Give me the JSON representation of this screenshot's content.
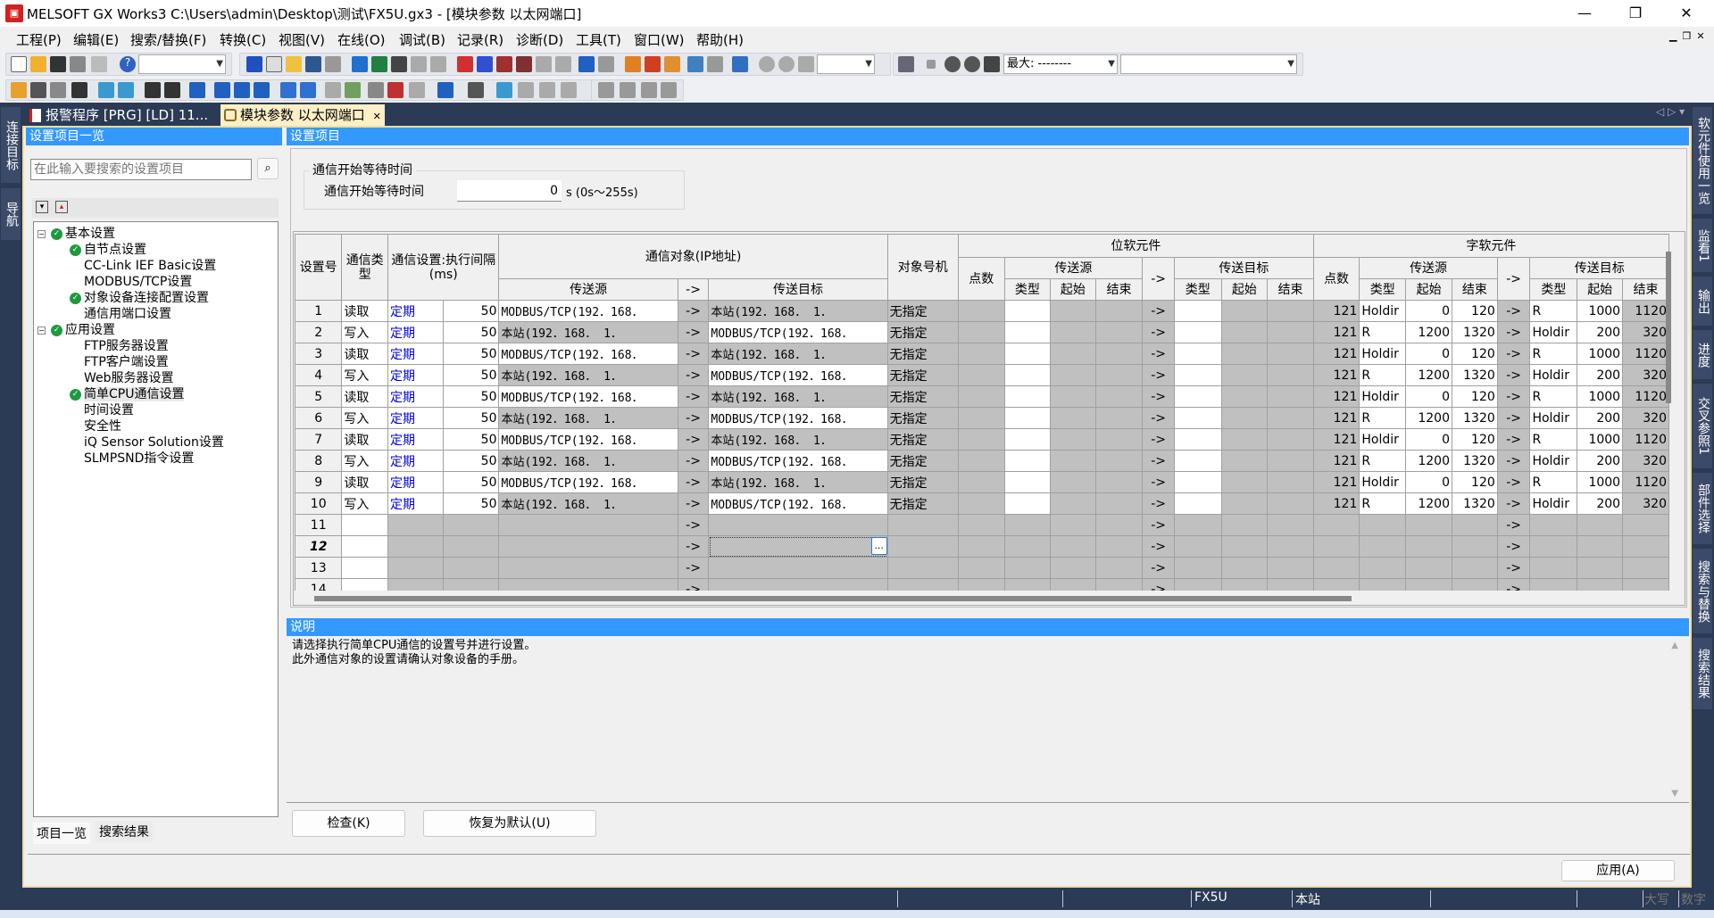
{
  "window": {
    "title": "MELSOFT GX Works3 C:\\Users\\admin\\Desktop\\测试\\FX5U.gx3 - [模块参数 以太网端口]",
    "minimize": "—",
    "restore": "❐",
    "close": "✕"
  },
  "menu": [
    "工程(P)",
    "编辑(E)",
    "搜索/替换(F)",
    "转换(C)",
    "视图(V)",
    "在线(O)",
    "调试(B)",
    "记录(R)",
    "诊断(D)",
    "工具(T)",
    "窗口(W)",
    "帮助(H)"
  ],
  "toolbar": {
    "combo1": "",
    "combo2": "",
    "max_label": "最大: --------",
    "combo4": ""
  },
  "tabs": [
    {
      "label": "报警程序 [PRG] [LD] 11..."
    },
    {
      "label": "模块参数 以太网端口",
      "close": "✕"
    }
  ],
  "tab_nav": "◁ ▷ ▾",
  "left_strip": [
    "连接目标",
    "导航"
  ],
  "right_strip": [
    "软元件使用一览",
    "监看1",
    "输出",
    "进度",
    "交叉参照1",
    "部件选择",
    "搜索与替换",
    "搜索结果"
  ],
  "left_panel": {
    "header": "设置项目一览",
    "search_placeholder": "在此输入要搜索的设置项目",
    "tree": [
      {
        "label": "基本设置",
        "level": 0,
        "checked": true,
        "expanded": true
      },
      {
        "label": "自节点设置",
        "level": 1,
        "checked": true
      },
      {
        "label": "CC-Link IEF Basic设置",
        "level": 1,
        "checked": false
      },
      {
        "label": "MODBUS/TCP设置",
        "level": 1,
        "checked": false
      },
      {
        "label": "对象设备连接配置设置",
        "level": 1,
        "checked": true
      },
      {
        "label": "通信用端口设置",
        "level": 1,
        "checked": false
      },
      {
        "label": "应用设置",
        "level": 0,
        "checked": true,
        "expanded": true
      },
      {
        "label": "FTP服务器设置",
        "level": 1,
        "checked": false
      },
      {
        "label": "FTP客户端设置",
        "level": 1,
        "checked": false
      },
      {
        "label": "Web服务器设置",
        "level": 1,
        "checked": false
      },
      {
        "label": "简单CPU通信设置",
        "level": 1,
        "checked": true,
        "selected": true
      },
      {
        "label": "时间设置",
        "level": 1,
        "checked": false
      },
      {
        "label": "安全性",
        "level": 1,
        "checked": false
      },
      {
        "label": "iQ Sensor Solution设置",
        "level": 1,
        "checked": false
      },
      {
        "label": "SLMPSND指令设置",
        "level": 1,
        "checked": false
      }
    ],
    "bottom_tabs": [
      "项目一览",
      "搜索结果"
    ]
  },
  "settings": {
    "header": "设置项目",
    "group_title": "通信开始等待时间",
    "wait_label": "通信开始等待时间",
    "wait_value": "0",
    "wait_unit": "s (0s～255s)"
  },
  "grid": {
    "headers": {
      "no": "设置号",
      "type": "通信类型",
      "interval": "通信设置:执行间隔(ms)",
      "target": "通信对象(IP地址)",
      "src": "传送源",
      "arrow": "->",
      "dst": "传送目标",
      "station": "对象号机",
      "bit": "位软元件",
      "word": "字软元件",
      "points": "点数",
      "kind": "类型",
      "start": "起始",
      "end": "结束"
    },
    "rows": [
      {
        "no": "1",
        "type": "读取",
        "mode": "定期",
        "interval": "50",
        "src": "MODBUS/TCP(192．168．",
        "dst": "本站(192．168．  1．",
        "station": "无指定",
        "w_points": "121",
        "w_src_type": "Holdir",
        "w_src_start": "0",
        "w_src_end": "120",
        "w_dst_type": "R",
        "w_dst_start": "1000",
        "w_dst_end": "1120"
      },
      {
        "no": "2",
        "type": "写入",
        "mode": "定期",
        "interval": "50",
        "src": "本站(192．168．  1．",
        "dst": "MODBUS/TCP(192．168．",
        "station": "无指定",
        "w_points": "121",
        "w_src_type": "R",
        "w_src_start": "1200",
        "w_src_end": "1320",
        "w_dst_type": "Holdir",
        "w_dst_start": "200",
        "w_dst_end": "320"
      },
      {
        "no": "3",
        "type": "读取",
        "mode": "定期",
        "interval": "50",
        "src": "MODBUS/TCP(192．168．",
        "dst": "本站(192．168．  1．",
        "station": "无指定",
        "w_points": "121",
        "w_src_type": "Holdir",
        "w_src_start": "0",
        "w_src_end": "120",
        "w_dst_type": "R",
        "w_dst_start": "1000",
        "w_dst_end": "1120"
      },
      {
        "no": "4",
        "type": "写入",
        "mode": "定期",
        "interval": "50",
        "src": "本站(192．168．  1．",
        "dst": "MODBUS/TCP(192．168．",
        "station": "无指定",
        "w_points": "121",
        "w_src_type": "R",
        "w_src_start": "1200",
        "w_src_end": "1320",
        "w_dst_type": "Holdir",
        "w_dst_start": "200",
        "w_dst_end": "320"
      },
      {
        "no": "5",
        "type": "读取",
        "mode": "定期",
        "interval": "50",
        "src": "MODBUS/TCP(192．168．",
        "dst": "本站(192．168．  1．",
        "station": "无指定",
        "w_points": "121",
        "w_src_type": "Holdir",
        "w_src_start": "0",
        "w_src_end": "120",
        "w_dst_type": "R",
        "w_dst_start": "1000",
        "w_dst_end": "1120"
      },
      {
        "no": "6",
        "type": "写入",
        "mode": "定期",
        "interval": "50",
        "src": "本站(192．168．  1．",
        "dst": "MODBUS/TCP(192．168．",
        "station": "无指定",
        "w_points": "121",
        "w_src_type": "R",
        "w_src_start": "1200",
        "w_src_end": "1320",
        "w_dst_type": "Holdir",
        "w_dst_start": "200",
        "w_dst_end": "320"
      },
      {
        "no": "7",
        "type": "读取",
        "mode": "定期",
        "interval": "50",
        "src": "MODBUS/TCP(192．168．",
        "dst": "本站(192．168．  1．",
        "station": "无指定",
        "w_points": "121",
        "w_src_type": "Holdir",
        "w_src_start": "0",
        "w_src_end": "120",
        "w_dst_type": "R",
        "w_dst_start": "1000",
        "w_dst_end": "1120"
      },
      {
        "no": "8",
        "type": "写入",
        "mode": "定期",
        "interval": "50",
        "src": "本站(192．168．  1．",
        "dst": "MODBUS/TCP(192．168．",
        "station": "无指定",
        "w_points": "121",
        "w_src_type": "R",
        "w_src_start": "1200",
        "w_src_end": "1320",
        "w_dst_type": "Holdir",
        "w_dst_start": "200",
        "w_dst_end": "320"
      },
      {
        "no": "9",
        "type": "读取",
        "mode": "定期",
        "interval": "50",
        "src": "MODBUS/TCP(192．168．",
        "dst": "本站(192．168．  1．",
        "station": "无指定",
        "w_points": "121",
        "w_src_type": "Holdir",
        "w_src_start": "0",
        "w_src_end": "120",
        "w_dst_type": "R",
        "w_dst_start": "1000",
        "w_dst_end": "1120"
      },
      {
        "no": "10",
        "type": "写入",
        "mode": "定期",
        "interval": "50",
        "src": "本站(192．168．  1．",
        "dst": "MODBUS/TCP(192．168．",
        "station": "无指定",
        "w_points": "121",
        "w_src_type": "R",
        "w_src_start": "1200",
        "w_src_end": "1320",
        "w_dst_type": "Holdir",
        "w_dst_start": "200",
        "w_dst_end": "320"
      }
    ],
    "empty_rows": [
      "11",
      "12",
      "13",
      "14"
    ],
    "selected_row": "12",
    "browse_button": "..."
  },
  "description": {
    "header": "说明",
    "lines": [
      "请选择执行简单CPU通信的设置号并进行设置。",
      "此外通信对象的设置请确认对象设备的手册。"
    ]
  },
  "buttons": {
    "check": "检查(K)",
    "restore": "恢复为默认(U)",
    "apply": "应用(A)"
  },
  "statusbar": {
    "model": "FX5U",
    "station": "本站",
    "caps": "大写",
    "num": "数字"
  },
  "colors": {
    "header_blue": "#3399ff",
    "frame_navy": "#2b3a55",
    "readonly_cell": "#c0c0c0",
    "link_blue": "#0000ee"
  }
}
